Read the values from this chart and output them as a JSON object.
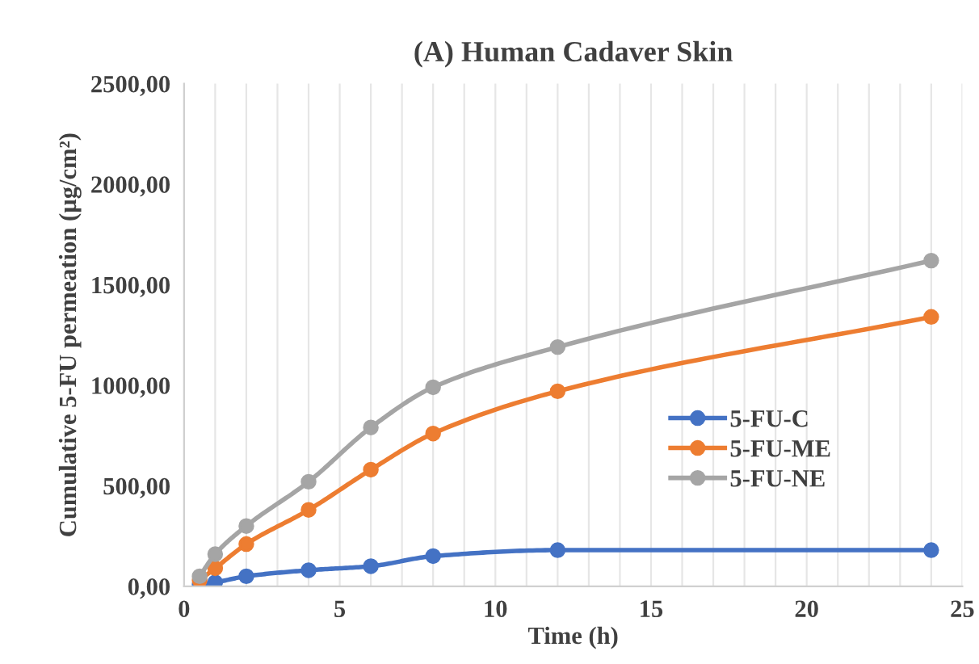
{
  "chart_data": {
    "type": "line",
    "title": "(A) Human Cadaver Skin",
    "xlabel": "Time (h)",
    "ylabel": "Cumulative 5-FU permeation (µg/cm²)",
    "x": [
      0.5,
      1,
      2,
      4,
      6,
      8,
      12,
      24
    ],
    "series": [
      {
        "name": "5-FU-C",
        "color": "#4472c4",
        "values": [
          10,
          20,
          50,
          80,
          100,
          150,
          180,
          180
        ]
      },
      {
        "name": "5-FU-ME",
        "color": "#ed7d31",
        "values": [
          30,
          90,
          210,
          380,
          580,
          760,
          970,
          1340
        ]
      },
      {
        "name": "5-FU-NE",
        "color": "#a5a5a5",
        "values": [
          50,
          160,
          300,
          520,
          790,
          990,
          1190,
          1620
        ]
      }
    ],
    "xlim": [
      0,
      25
    ],
    "xticks": [
      0,
      5,
      10,
      15,
      20,
      25
    ],
    "ylim": [
      0,
      2500
    ],
    "yticks": [
      {
        "value": 0,
        "label": "0,00"
      },
      {
        "value": 500,
        "label": "500,00"
      },
      {
        "value": 1000,
        "label": "1000,00"
      },
      {
        "value": 1500,
        "label": "1500,00"
      },
      {
        "value": 2000,
        "label": "2000,00"
      },
      {
        "value": 2500,
        "label": "2500,00"
      }
    ],
    "grid": "x",
    "legend": "center right",
    "marker": "circle",
    "line_style": "solid"
  }
}
